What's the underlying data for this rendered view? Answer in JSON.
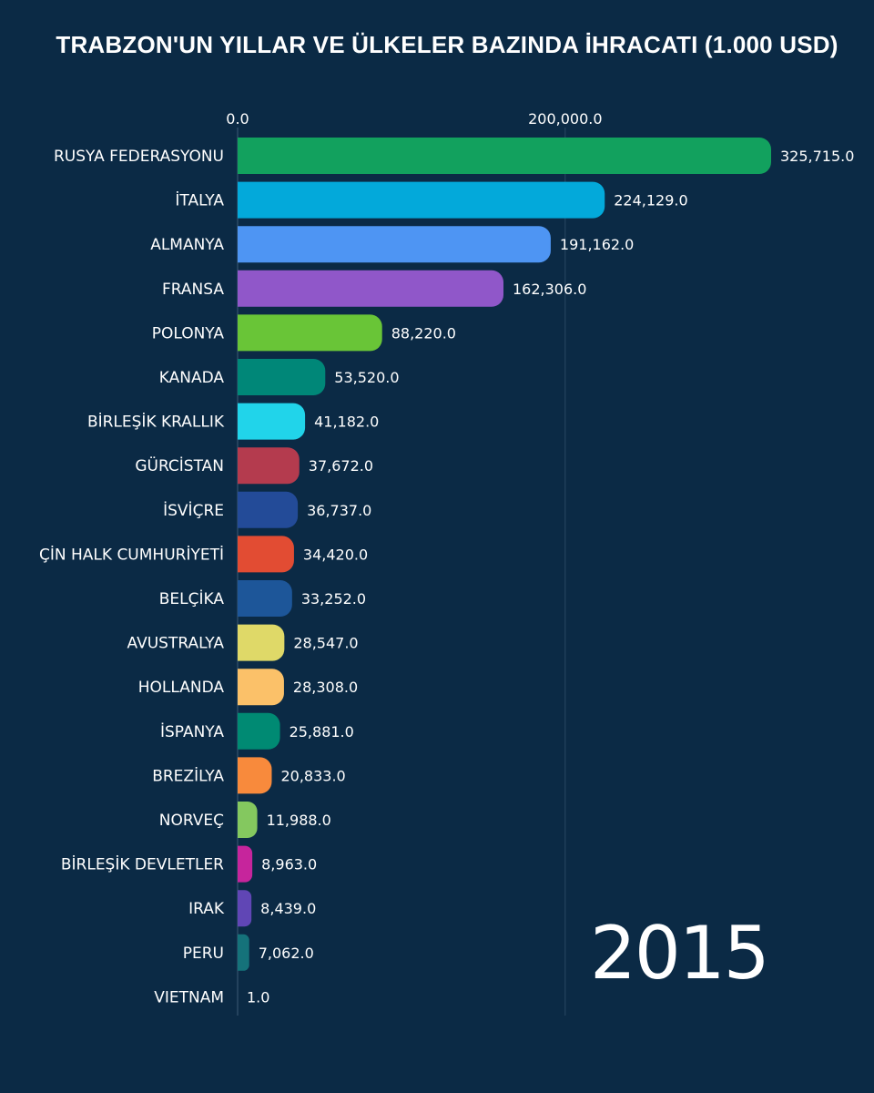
{
  "chart_data": {
    "type": "bar",
    "orientation": "horizontal",
    "title": "TRABZON'UN YILLAR VE ÜLKELER BAZINDA İHRACATI (1.000 USD)",
    "year": "2015",
    "xlim": [
      0,
      325715
    ],
    "x_ticks": [
      0,
      200000
    ],
    "x_tick_labels": [
      "0.0",
      "200,000.0"
    ],
    "grid": true,
    "categories": [
      "RUSYA FEDERASYONU",
      "İTALYA",
      "ALMANYA",
      "FRANSA",
      "POLONYA",
      "KANADA",
      "BİRLEŞİK KRALLIK",
      "GÜRCİSTAN",
      "İSVİÇRE",
      "ÇİN HALK CUMHURİYETİ",
      "BELÇİKA",
      "AVUSTRALYA",
      "HOLLANDA",
      "İSPANYA",
      "BREZİLYA",
      "NORVEÇ",
      "BİRLEŞİK DEVLETLER",
      "IRAK",
      "PERU",
      "VIETNAM"
    ],
    "values": [
      325715,
      224129,
      191162,
      162306,
      88220,
      53520,
      41182,
      37672,
      36737,
      34420,
      33252,
      28547,
      28308,
      25881,
      20833,
      11988,
      8963,
      8439,
      7062,
      1
    ],
    "value_labels": [
      "325,715.0",
      "224,129.0",
      "191,162.0",
      "162,306.0",
      "88,220.0",
      "53,520.0",
      "41,182.0",
      "37,672.0",
      "36,737.0",
      "34,420.0",
      "33,252.0",
      "28,547.0",
      "28,308.0",
      "25,881.0",
      "20,833.0",
      "11,988.0",
      "8,963.0",
      "8,439.0",
      "7,062.0",
      "1.0"
    ],
    "colors": [
      "#12a15e",
      "#03a9da",
      "#4e95f3",
      "#9057c9",
      "#69c537",
      "#008778",
      "#21d4ea",
      "#b43b4e",
      "#234b98",
      "#e24c33",
      "#1d5699",
      "#dfd968",
      "#fbc169",
      "#008a73",
      "#f88a3c",
      "#84c85f",
      "#c6259c",
      "#6046b5",
      "#15727a",
      "#7a9bb8"
    ]
  }
}
